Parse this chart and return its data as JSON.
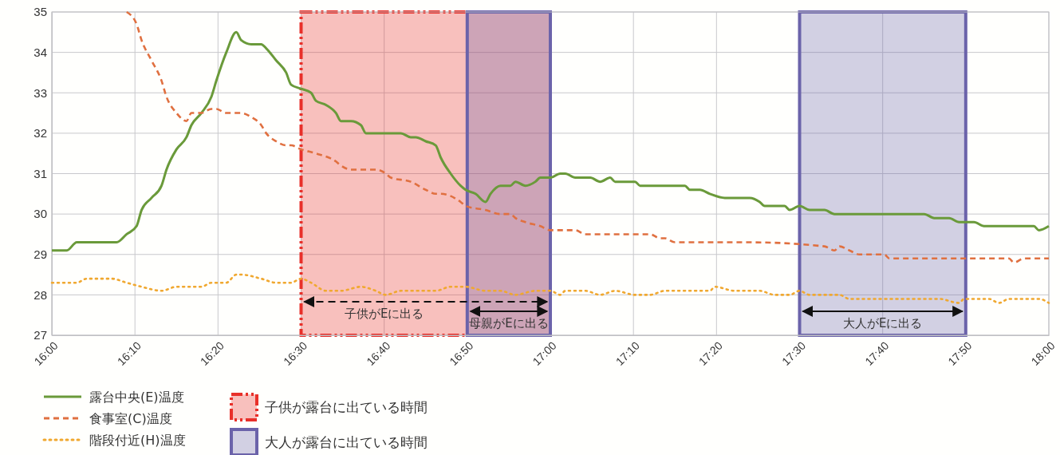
{
  "chart_data": {
    "type": "line",
    "xlim": [
      16,
      18
    ],
    "ylim": [
      27,
      35
    ],
    "xticks": [
      {
        "value": 16,
        "label": "16:00"
      },
      {
        "value": 16.1667,
        "label": "16:10"
      },
      {
        "value": 16.3333,
        "label": "16:20"
      },
      {
        "value": 16.5,
        "label": "16:30"
      },
      {
        "value": 16.6667,
        "label": "16:40"
      },
      {
        "value": 16.8333,
        "label": "16:50"
      },
      {
        "value": 17,
        "label": "17:00"
      },
      {
        "value": 17.1667,
        "label": "17:10"
      },
      {
        "value": 17.3333,
        "label": "17:20"
      },
      {
        "value": 17.5,
        "label": "17:30"
      },
      {
        "value": 17.6667,
        "label": "17:40"
      },
      {
        "value": 17.8333,
        "label": "17:50"
      },
      {
        "value": 18,
        "label": "18:00"
      }
    ],
    "yticks": [
      27,
      28,
      29,
      30,
      31,
      32,
      33,
      34,
      35
    ],
    "grid": true,
    "legend": "bottom left",
    "series": [
      {
        "name": "露台中央(E)温度",
        "color": "#6a9a3a",
        "line_style": "solid",
        "x": [
          16,
          16.03,
          16.05,
          16.13,
          16.15,
          16.17,
          16.18,
          16.2,
          16.22,
          16.23,
          16.25,
          16.27,
          16.28,
          16.3,
          16.32,
          16.33,
          16.35,
          16.37,
          16.38,
          16.4,
          16.42,
          16.43,
          16.45,
          16.47,
          16.48,
          16.5,
          16.52,
          16.53,
          16.55,
          16.57,
          16.58,
          16.6,
          16.62,
          16.63,
          16.7,
          16.72,
          16.73,
          16.75,
          16.77,
          16.78,
          16.8,
          16.82,
          16.83,
          16.85,
          16.87,
          16.88,
          16.9,
          16.92,
          16.93,
          16.95,
          16.97,
          16.98,
          17,
          17.02,
          17.03,
          17.05,
          17.08,
          17.1,
          17.12,
          17.13,
          17.17,
          17.18,
          17.27,
          17.28,
          17.3,
          17.32,
          17.35,
          17.4,
          17.42,
          17.43,
          17.47,
          17.48,
          17.5,
          17.52,
          17.55,
          17.57,
          17.75,
          17.77,
          17.8,
          17.82,
          17.85,
          17.87,
          17.97,
          17.98,
          18
        ],
        "values": [
          29.1,
          29.1,
          29.3,
          29.3,
          29.5,
          29.7,
          30.1,
          30.4,
          30.7,
          31.1,
          31.6,
          31.9,
          32.2,
          32.5,
          32.9,
          33.3,
          34.0,
          34.5,
          34.3,
          34.2,
          34.2,
          34.1,
          33.8,
          33.5,
          33.2,
          33.1,
          33.0,
          32.8,
          32.7,
          32.5,
          32.3,
          32.3,
          32.2,
          32.0,
          32.0,
          31.9,
          31.9,
          31.8,
          31.7,
          31.4,
          31.0,
          30.7,
          30.6,
          30.5,
          30.3,
          30.5,
          30.7,
          30.7,
          30.8,
          30.7,
          30.8,
          30.9,
          30.9,
          31.0,
          31.0,
          30.9,
          30.9,
          30.8,
          30.9,
          30.8,
          30.8,
          30.7,
          30.7,
          30.6,
          30.6,
          30.5,
          30.4,
          30.4,
          30.3,
          30.2,
          30.2,
          30.1,
          30.2,
          30.1,
          30.1,
          30.0,
          30.0,
          29.9,
          29.9,
          29.8,
          29.8,
          29.7,
          29.7,
          29.6,
          29.7
        ]
      },
      {
        "name": "食事室(C)温度",
        "color": "#e07040",
        "line_style": "dashed",
        "x": [
          16.15,
          16.17,
          16.18,
          16.2,
          16.22,
          16.23,
          16.25,
          16.27,
          16.28,
          16.3,
          16.32,
          16.33,
          16.35,
          16.37,
          16.38,
          16.4,
          16.42,
          16.43,
          16.45,
          16.47,
          16.48,
          16.5,
          16.53,
          16.57,
          16.58,
          16.6,
          16.65,
          16.67,
          16.68,
          16.72,
          16.75,
          16.77,
          16.78,
          16.82,
          16.83,
          16.87,
          16.9,
          16.92,
          16.93,
          16.95,
          16.98,
          17,
          17.05,
          17.07,
          17.2,
          17.22,
          17.23,
          17.25,
          17.4,
          17.55,
          17.57,
          17.58,
          17.6,
          17.62,
          17.67,
          17.68,
          17.92,
          17.93,
          17.95,
          18
        ],
        "values": [
          35.0,
          34.7,
          34.3,
          33.8,
          33.3,
          32.9,
          32.5,
          32.3,
          32.5,
          32.5,
          32.6,
          32.6,
          32.5,
          32.5,
          32.5,
          32.4,
          32.2,
          32.0,
          31.8,
          31.7,
          31.7,
          31.6,
          31.5,
          31.3,
          31.2,
          31.1,
          31.1,
          31.0,
          30.9,
          30.8,
          30.6,
          30.5,
          30.5,
          30.3,
          30.2,
          30.1,
          30.0,
          30.0,
          29.9,
          29.8,
          29.7,
          29.6,
          29.6,
          29.5,
          29.5,
          29.4,
          29.4,
          29.3,
          29.3,
          29.2,
          29.1,
          29.2,
          29.1,
          29.0,
          29.0,
          28.9,
          28.9,
          28.8,
          28.9,
          28.9
        ]
      },
      {
        "name": "階段付近(H)温度",
        "color": "#f0a830",
        "line_style": "dotted",
        "x": [
          16,
          16.05,
          16.07,
          16.12,
          16.15,
          16.18,
          16.22,
          16.25,
          16.3,
          16.32,
          16.35,
          16.37,
          16.38,
          16.42,
          16.45,
          16.48,
          16.5,
          16.52,
          16.55,
          16.58,
          16.62,
          16.65,
          16.67,
          16.7,
          16.77,
          16.8,
          16.83,
          16.87,
          16.9,
          16.93,
          16.97,
          17,
          17.02,
          17.03,
          17.07,
          17.1,
          17.13,
          17.17,
          17.2,
          17.23,
          17.32,
          17.33,
          17.37,
          17.42,
          17.45,
          17.48,
          17.5,
          17.52,
          17.58,
          17.6,
          17.78,
          17.82,
          17.83,
          17.88,
          17.9,
          17.92,
          17.98,
          18
        ],
        "values": [
          28.3,
          28.3,
          28.4,
          28.4,
          28.3,
          28.2,
          28.1,
          28.2,
          28.2,
          28.3,
          28.3,
          28.5,
          28.5,
          28.4,
          28.3,
          28.3,
          28.4,
          28.3,
          28.1,
          28.1,
          28.2,
          28.1,
          28.0,
          28.1,
          28.1,
          28.2,
          28.2,
          28.1,
          28.1,
          28.0,
          28.1,
          28.1,
          28.0,
          28.1,
          28.1,
          28.0,
          28.1,
          28.0,
          28.0,
          28.1,
          28.1,
          28.2,
          28.1,
          28.1,
          28.0,
          28.0,
          28.1,
          28.0,
          28.0,
          27.9,
          27.9,
          27.8,
          27.9,
          27.9,
          27.8,
          27.9,
          27.9,
          27.8
        ]
      }
    ],
    "bands": [
      {
        "axis": "x",
        "from": 16.5,
        "to": 17,
        "label": "子供が露台に出ている時間",
        "color": "#e8302a"
      },
      {
        "axis": "x",
        "from": 16.8333,
        "to": 17,
        "color": "#6b63aa"
      },
      {
        "axis": "x",
        "from": 17.5,
        "to": 17.8333,
        "label": "大人が露台に出ている時間",
        "color": "#6b63aa"
      }
    ],
    "annotations": [
      "子供がEに出る",
      "母親がEに出る",
      "大人がEに出る"
    ]
  }
}
